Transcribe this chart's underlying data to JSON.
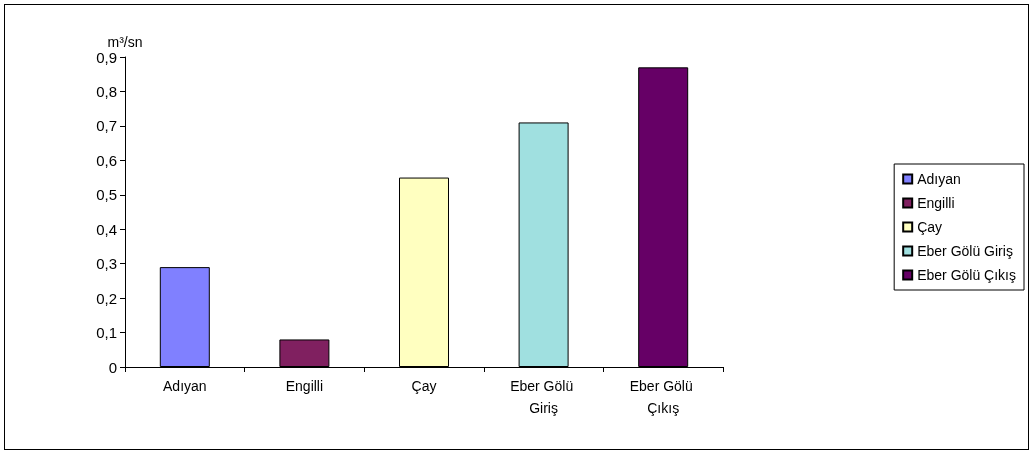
{
  "chart_data": {
    "type": "bar",
    "ylabel": "m³/sn",
    "categories": [
      "Adıyan",
      "Engilli",
      "Çay",
      "Eber Gölü Giriş",
      "Eber Gölü Çıkış"
    ],
    "series": [
      {
        "name": "Adıyan",
        "color": "#8080ff",
        "values": [
          0.29,
          null,
          null,
          null,
          null
        ]
      },
      {
        "name": "Engilli",
        "color": "#802060",
        "values": [
          null,
          0.08,
          null,
          null,
          null
        ]
      },
      {
        "name": "Çay",
        "color": "#ffffc0",
        "values": [
          null,
          null,
          0.55,
          null,
          null
        ]
      },
      {
        "name": "Eber Gölü Giriş",
        "color": "#a0e0e0",
        "values": [
          null,
          null,
          null,
          0.71,
          null
        ]
      },
      {
        "name": "Eber Gölü Çıkış",
        "color": "#660066",
        "values": [
          null,
          null,
          null,
          null,
          0.87
        ]
      }
    ],
    "ylim": [
      0,
      0.9
    ],
    "yticks": [
      {
        "value": 0,
        "label": "0"
      },
      {
        "value": 0.1,
        "label": "0,1"
      },
      {
        "value": 0.2,
        "label": "0,2"
      },
      {
        "value": 0.3,
        "label": "0,3"
      },
      {
        "value": 0.4,
        "label": "0,4"
      },
      {
        "value": 0.5,
        "label": "0,5"
      },
      {
        "value": 0.6,
        "label": "0,6"
      },
      {
        "value": 0.7,
        "label": "0,7"
      },
      {
        "value": 0.8,
        "label": "0,8"
      },
      {
        "value": 0.9,
        "label": "0,9"
      }
    ],
    "grid": false,
    "legend": "right"
  }
}
